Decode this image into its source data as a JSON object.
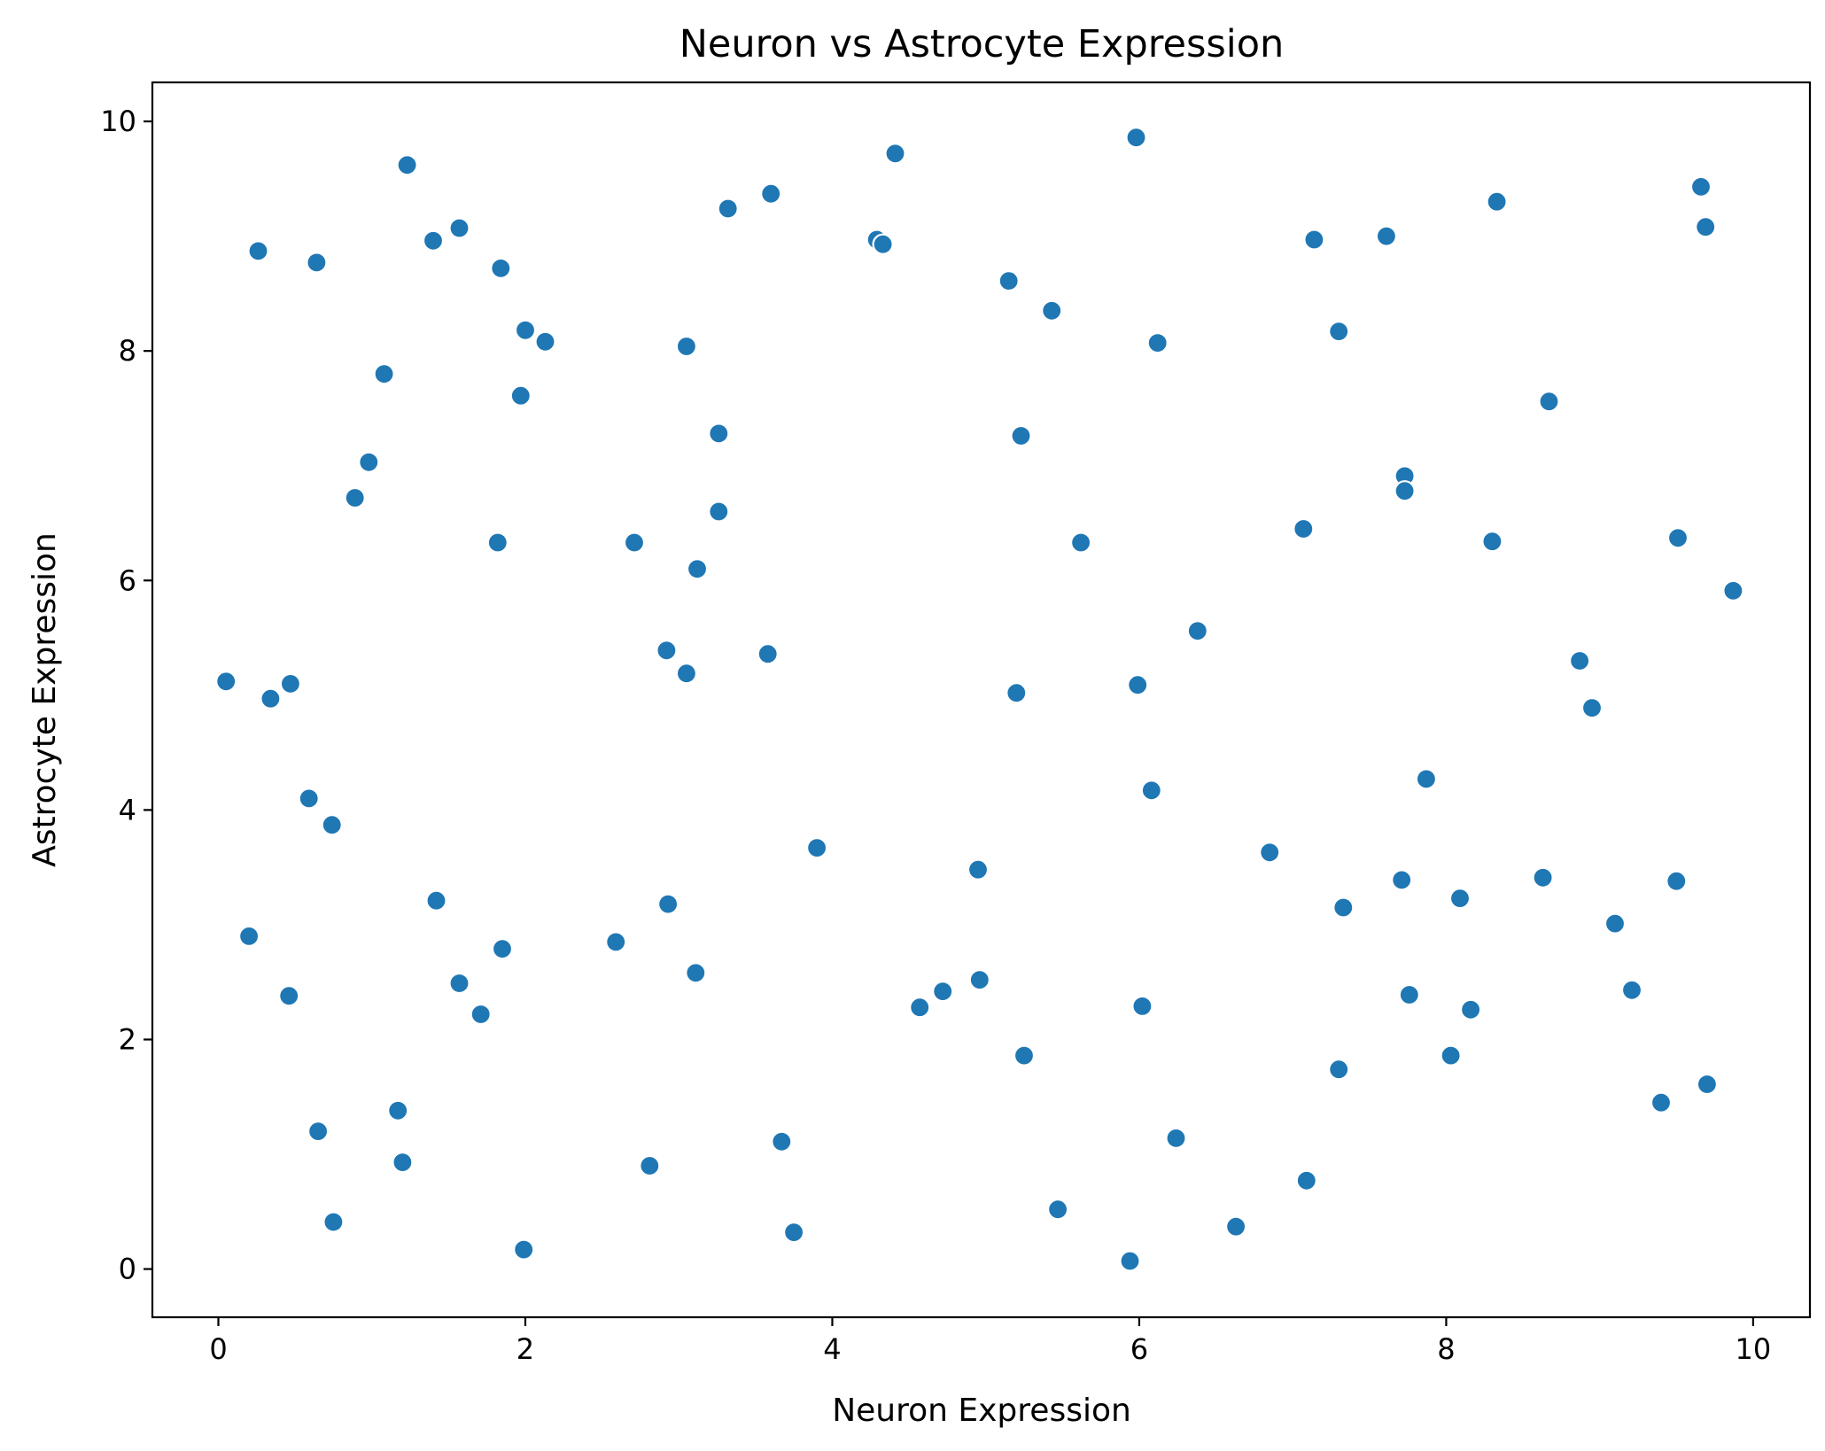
{
  "chart_data": {
    "type": "scatter",
    "title": "Neuron vs Astrocyte Expression",
    "xlabel": "Neuron Expression",
    "ylabel": "Astrocyte Expression",
    "xlim": [
      -0.43,
      10.37
    ],
    "ylim": [
      -0.42,
      10.34
    ],
    "xticks": [
      0,
      2,
      4,
      6,
      8,
      10
    ],
    "yticks": [
      0,
      2,
      4,
      6,
      8,
      10
    ],
    "grid": false,
    "marker_color": "#1f77b4",
    "points": [
      {
        "x": 0.05,
        "y": 5.12
      },
      {
        "x": 0.26,
        "y": 8.87
      },
      {
        "x": 0.34,
        "y": 4.97
      },
      {
        "x": 0.47,
        "y": 5.1
      },
      {
        "x": 0.2,
        "y": 2.9
      },
      {
        "x": 0.46,
        "y": 2.38
      },
      {
        "x": 0.59,
        "y": 4.1
      },
      {
        "x": 0.64,
        "y": 8.77
      },
      {
        "x": 0.65,
        "y": 1.2
      },
      {
        "x": 0.74,
        "y": 3.87
      },
      {
        "x": 0.75,
        "y": 0.41
      },
      {
        "x": 0.89,
        "y": 6.72
      },
      {
        "x": 0.98,
        "y": 7.03
      },
      {
        "x": 1.08,
        "y": 7.8
      },
      {
        "x": 1.17,
        "y": 1.38
      },
      {
        "x": 1.2,
        "y": 0.93
      },
      {
        "x": 1.23,
        "y": 9.62
      },
      {
        "x": 1.4,
        "y": 8.96
      },
      {
        "x": 1.42,
        "y": 3.21
      },
      {
        "x": 1.57,
        "y": 9.07
      },
      {
        "x": 1.57,
        "y": 2.49
      },
      {
        "x": 1.71,
        "y": 2.22
      },
      {
        "x": 1.82,
        "y": 6.33
      },
      {
        "x": 1.84,
        "y": 8.72
      },
      {
        "x": 1.85,
        "y": 2.79
      },
      {
        "x": 1.97,
        "y": 7.61
      },
      {
        "x": 2.0,
        "y": 8.18
      },
      {
        "x": 2.13,
        "y": 8.08
      },
      {
        "x": 1.99,
        "y": 0.17
      },
      {
        "x": 2.59,
        "y": 2.85
      },
      {
        "x": 2.71,
        "y": 6.33
      },
      {
        "x": 2.81,
        "y": 0.9
      },
      {
        "x": 2.92,
        "y": 5.39
      },
      {
        "x": 2.93,
        "y": 3.18
      },
      {
        "x": 3.05,
        "y": 8.04
      },
      {
        "x": 3.05,
        "y": 5.19
      },
      {
        "x": 3.12,
        "y": 6.1
      },
      {
        "x": 3.11,
        "y": 2.58
      },
      {
        "x": 3.26,
        "y": 7.28
      },
      {
        "x": 3.26,
        "y": 6.6
      },
      {
        "x": 3.32,
        "y": 9.24
      },
      {
        "x": 3.58,
        "y": 5.36
      },
      {
        "x": 3.6,
        "y": 9.37
      },
      {
        "x": 3.67,
        "y": 1.11
      },
      {
        "x": 3.75,
        "y": 0.32
      },
      {
        "x": 3.9,
        "y": 3.67
      },
      {
        "x": 4.29,
        "y": 8.97
      },
      {
        "x": 4.33,
        "y": 8.93
      },
      {
        "x": 4.41,
        "y": 9.72
      },
      {
        "x": 4.57,
        "y": 2.28
      },
      {
        "x": 4.72,
        "y": 2.42
      },
      {
        "x": 4.95,
        "y": 3.48
      },
      {
        "x": 4.96,
        "y": 2.52
      },
      {
        "x": 5.15,
        "y": 8.61
      },
      {
        "x": 5.2,
        "y": 5.02
      },
      {
        "x": 5.23,
        "y": 7.26
      },
      {
        "x": 5.25,
        "y": 1.86
      },
      {
        "x": 5.43,
        "y": 8.35
      },
      {
        "x": 5.47,
        "y": 0.52
      },
      {
        "x": 5.62,
        "y": 6.33
      },
      {
        "x": 5.94,
        "y": 0.07
      },
      {
        "x": 5.98,
        "y": 9.86
      },
      {
        "x": 5.99,
        "y": 5.09
      },
      {
        "x": 6.02,
        "y": 2.29
      },
      {
        "x": 6.08,
        "y": 4.17
      },
      {
        "x": 6.12,
        "y": 8.07
      },
      {
        "x": 6.24,
        "y": 1.14
      },
      {
        "x": 6.38,
        "y": 5.56
      },
      {
        "x": 6.63,
        "y": 0.37
      },
      {
        "x": 6.85,
        "y": 3.63
      },
      {
        "x": 7.07,
        "y": 6.45
      },
      {
        "x": 7.09,
        "y": 0.77
      },
      {
        "x": 7.14,
        "y": 8.97
      },
      {
        "x": 7.3,
        "y": 8.17
      },
      {
        "x": 7.3,
        "y": 1.74
      },
      {
        "x": 7.33,
        "y": 3.15
      },
      {
        "x": 7.61,
        "y": 9.0
      },
      {
        "x": 7.71,
        "y": 3.39
      },
      {
        "x": 7.73,
        "y": 6.91
      },
      {
        "x": 7.73,
        "y": 6.78
      },
      {
        "x": 7.76,
        "y": 2.39
      },
      {
        "x": 7.87,
        "y": 4.27
      },
      {
        "x": 8.03,
        "y": 1.86
      },
      {
        "x": 8.09,
        "y": 3.23
      },
      {
        "x": 8.16,
        "y": 2.26
      },
      {
        "x": 8.3,
        "y": 6.34
      },
      {
        "x": 8.33,
        "y": 9.3
      },
      {
        "x": 8.63,
        "y": 3.41
      },
      {
        "x": 8.67,
        "y": 7.56
      },
      {
        "x": 8.87,
        "y": 5.3
      },
      {
        "x": 8.95,
        "y": 4.89
      },
      {
        "x": 9.1,
        "y": 3.01
      },
      {
        "x": 9.21,
        "y": 2.43
      },
      {
        "x": 9.4,
        "y": 1.45
      },
      {
        "x": 9.5,
        "y": 3.38
      },
      {
        "x": 9.51,
        "y": 6.37
      },
      {
        "x": 9.66,
        "y": 9.43
      },
      {
        "x": 9.69,
        "y": 9.08
      },
      {
        "x": 9.7,
        "y": 1.61
      },
      {
        "x": 9.87,
        "y": 5.91
      }
    ]
  }
}
